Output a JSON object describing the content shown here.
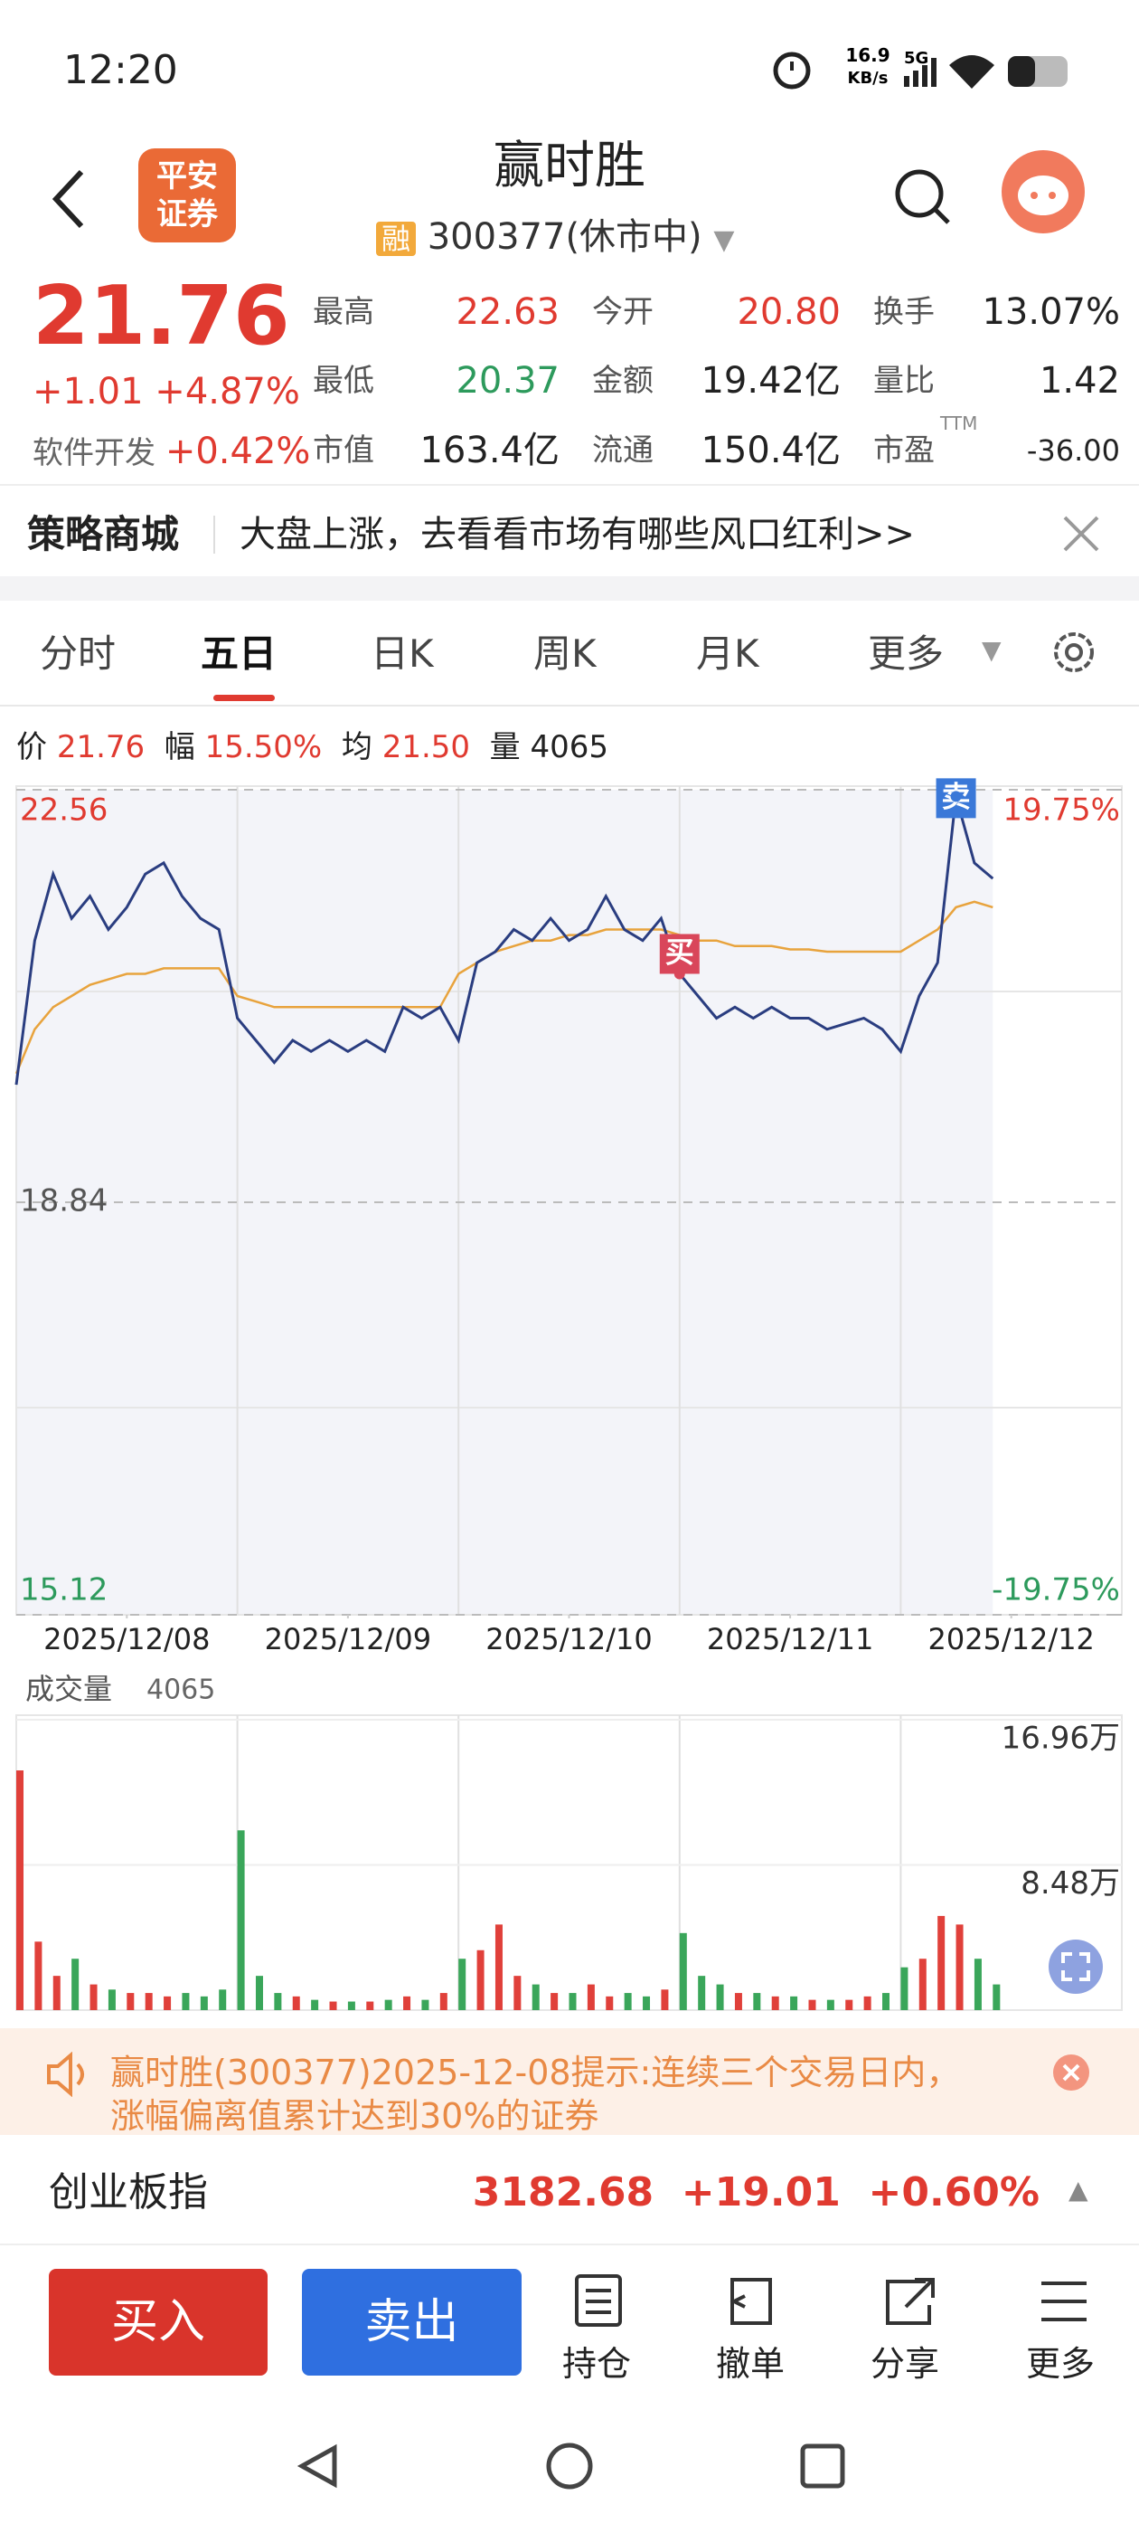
{
  "status_bar": {
    "time": "12:20",
    "net_speed": "16.9",
    "net_unit": "KB/s",
    "signal": "5G"
  },
  "header": {
    "logo_lines": [
      "平安",
      "证券"
    ],
    "title": "赢时胜",
    "badge": "融",
    "code": "300377",
    "status": "(休市中)"
  },
  "quote": {
    "price": "21.76",
    "change": "+1.01",
    "change_pct": "+4.87%",
    "sector": "软件开发",
    "sector_change": "+0.42%",
    "stats": [
      {
        "label": "最高",
        "value": "22.63"
      },
      {
        "label": "今开",
        "value": "20.80"
      },
      {
        "label": "换手",
        "value": "13.07%"
      },
      {
        "label": "最低",
        "value": "20.37"
      },
      {
        "label": "金额",
        "value": "19.42亿"
      },
      {
        "label": "量比",
        "value": "1.42"
      },
      {
        "label": "市值",
        "value": "163.4亿"
      },
      {
        "label": "流通",
        "value": "150.4亿"
      },
      {
        "label": "市盈",
        "value": "-36.00"
      }
    ],
    "ttm": "TTM"
  },
  "banner": {
    "title": "策略商城",
    "text": "大盘上涨，去看看市场有哪些风口红利>>"
  },
  "tabs": [
    "分时",
    "五日",
    "日K",
    "周K",
    "月K",
    "更多"
  ],
  "chart_info": [
    {
      "label": "价",
      "value": "21.76"
    },
    {
      "label": "幅",
      "value": "15.50%"
    },
    {
      "label": "均",
      "value": "21.50"
    },
    {
      "label": "量",
      "value": "4065"
    }
  ],
  "chart_data": [
    {
      "type": "line",
      "x": [
        0,
        1,
        2,
        3,
        4,
        5,
        6,
        7,
        8,
        9,
        10,
        11,
        12,
        13,
        14,
        15,
        16,
        17,
        18,
        19,
        20,
        21,
        22,
        23,
        24,
        25,
        26,
        27,
        28,
        29,
        30,
        31,
        32,
        33,
        34,
        35,
        36,
        37,
        38,
        39,
        40,
        41,
        42,
        43,
        44,
        45,
        46,
        47,
        48,
        49,
        50,
        51,
        52,
        53
      ],
      "xlim": [
        0,
        60
      ],
      "xticks": [
        {
          "value": 6,
          "label": "2025/12/08"
        },
        {
          "value": 18,
          "label": "2025/12/09"
        },
        {
          "value": 30,
          "label": "2025/12/10"
        },
        {
          "value": 42,
          "label": "2025/12/11"
        },
        {
          "value": 54,
          "label": "2025/12/12"
        }
      ],
      "ylim": [
        15.12,
        22.56
      ],
      "yticks": [
        22.56,
        18.84,
        15.12
      ],
      "y2lim": [
        -19.75,
        19.75
      ],
      "y2ticks": [
        {
          "value": 19.75,
          "label": "19.75%"
        },
        {
          "value": -19.75,
          "label": "-19.75%"
        }
      ],
      "series": [
        {
          "color": "#2a3d80",
          "values": [
            19.9,
            21.2,
            21.8,
            21.4,
            21.6,
            21.3,
            21.5,
            21.8,
            21.9,
            21.6,
            21.4,
            21.3,
            20.5,
            20.3,
            20.1,
            20.3,
            20.2,
            20.3,
            20.2,
            20.3,
            20.2,
            20.6,
            20.5,
            20.6,
            20.3,
            21.0,
            21.1,
            21.3,
            21.2,
            21.4,
            21.2,
            21.3,
            21.6,
            21.3,
            21.2,
            21.4,
            20.9,
            20.7,
            20.5,
            20.6,
            20.5,
            20.6,
            20.5,
            20.5,
            20.4,
            20.45,
            20.5,
            20.4,
            20.2,
            20.7,
            21.0,
            22.5,
            21.9,
            21.76
          ]
        },
        {
          "color": "#e8a33d",
          "values": [
            20.0,
            20.4,
            20.6,
            20.7,
            20.8,
            20.85,
            20.9,
            20.9,
            20.95,
            20.95,
            20.95,
            20.95,
            20.7,
            20.65,
            20.6,
            20.6,
            20.6,
            20.6,
            20.6,
            20.6,
            20.6,
            20.6,
            20.6,
            20.6,
            20.9,
            21.0,
            21.1,
            21.15,
            21.2,
            21.2,
            21.25,
            21.25,
            21.3,
            21.3,
            21.3,
            21.3,
            21.25,
            21.2,
            21.2,
            21.15,
            21.15,
            21.15,
            21.12,
            21.12,
            21.1,
            21.1,
            21.1,
            21.1,
            21.1,
            21.2,
            21.3,
            21.5,
            21.55,
            21.5
          ]
        }
      ],
      "annotations": [
        "买",
        "卖"
      ]
    },
    {
      "type": "bar",
      "title": "成交量",
      "subtitle": "4065",
      "x": [
        0,
        1,
        2,
        3,
        4,
        5,
        6,
        7,
        8,
        9,
        10,
        11,
        12,
        13,
        14,
        15,
        16,
        17,
        18,
        19,
        20,
        21,
        22,
        23,
        24,
        25,
        26,
        27,
        28,
        29,
        30,
        31,
        32,
        33,
        34,
        35,
        36,
        37,
        38,
        39,
        40,
        41,
        42,
        43,
        44,
        45,
        46,
        47,
        48,
        49,
        50,
        51,
        52,
        53
      ],
      "xlim": [
        0,
        60
      ],
      "ylim": [
        0,
        16.96
      ],
      "yticks": [
        {
          "value": 16.96,
          "label": "16.96万"
        },
        {
          "value": 8.48,
          "label": "8.48万"
        }
      ],
      "values": [
        14,
        4,
        2,
        3,
        1.5,
        1.2,
        1,
        1,
        0.8,
        1,
        0.8,
        1.2,
        10.5,
        2,
        1,
        0.8,
        0.6,
        0.5,
        0.5,
        0.5,
        0.6,
        0.8,
        0.6,
        1,
        3,
        3.5,
        5,
        2,
        1.5,
        1,
        1,
        1.5,
        0.8,
        1,
        0.8,
        1.2,
        4.5,
        2,
        1.5,
        1,
        1,
        0.8,
        0.8,
        0.6,
        0.6,
        0.6,
        0.8,
        1,
        2.5,
        3,
        5.5,
        5,
        3,
        1.5
      ],
      "up_color": "#e0403a",
      "down_color": "#3aa65a"
    }
  ],
  "notice": {
    "lines": [
      "赢时胜(300377)2025-12-08提示:连续三个交易日内，",
      "涨幅偏离值累计达到30%的证券"
    ]
  },
  "index_bar": {
    "name": "创业板指",
    "value": "3182.68",
    "change": "+19.01",
    "change_pct": "+0.60%"
  },
  "actions": {
    "buy": "买入",
    "sell": "卖出",
    "tools": [
      "持仓",
      "撤单",
      "分享",
      "更多"
    ]
  }
}
